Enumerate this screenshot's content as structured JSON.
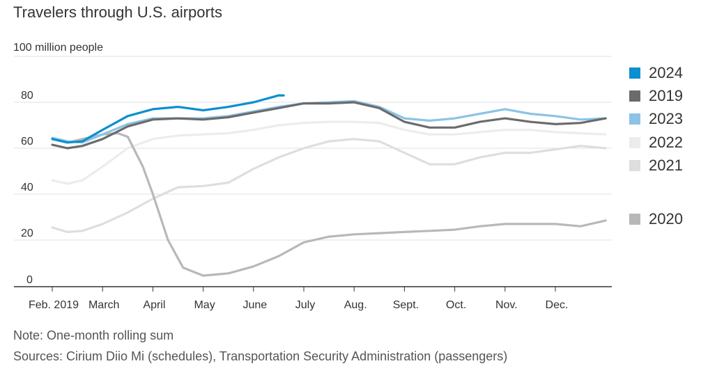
{
  "title": "Travelers through U.S. airports",
  "note": "Note: One-month rolling sum",
  "sources": "Sources: Cirium Diio Mi (schedules), Transportation Security Administration (passengers)",
  "chart_data": {
    "type": "line",
    "title": "Travelers through U.S. airports",
    "ylabel": "100 million people",
    "xlabel": "",
    "ylim": [
      0,
      100
    ],
    "yticks": [
      0,
      20,
      40,
      60,
      80,
      100
    ],
    "ytick_labels": [
      "0",
      "20",
      "40",
      "60",
      "80",
      "100 million people"
    ],
    "xlim": [
      0,
      11.2
    ],
    "xticks": [
      0,
      1,
      2,
      3,
      4,
      5,
      6,
      7,
      8,
      9,
      10
    ],
    "xtick_labels": [
      "Feb. 2019",
      "March",
      "April",
      "May",
      "June",
      "July",
      "Aug.",
      "Sept.",
      "Oct.",
      "Nov.",
      "Dec."
    ],
    "grid": true,
    "legend_position": "right",
    "x_unit": "months since Feb. 1",
    "series": [
      {
        "name": "2022",
        "color": "#ececec",
        "x": [
          0,
          0.3,
          0.6,
          1,
          1.5,
          2,
          2.5,
          3,
          3.5,
          4,
          4.5,
          5,
          5.5,
          6,
          6.5,
          7,
          7.5,
          8,
          8.5,
          9,
          9.5,
          10,
          10.5,
          11
        ],
        "values": [
          46,
          44.5,
          46,
          52,
          60,
          64,
          65.5,
          66,
          66.5,
          68,
          70,
          71,
          71.5,
          71.5,
          71,
          68,
          66,
          66,
          67,
          68,
          68,
          67,
          66.5,
          66
        ]
      },
      {
        "name": "2021",
        "color": "#dedede",
        "x": [
          0,
          0.3,
          0.6,
          1,
          1.5,
          2,
          2.5,
          3,
          3.5,
          4,
          4.5,
          5,
          5.5,
          6,
          6.5,
          7,
          7.5,
          8,
          8.5,
          9,
          9.5,
          10,
          10.5,
          11
        ],
        "values": [
          25.5,
          23.5,
          24,
          27,
          32,
          38,
          43,
          43.5,
          45,
          51,
          56,
          60,
          63,
          64,
          63,
          58,
          53,
          53,
          56,
          58,
          58,
          59.5,
          61,
          60
        ]
      },
      {
        "name": "2020",
        "color": "#b8b8b8",
        "x": [
          0,
          0.3,
          0.6,
          1,
          1.3,
          1.5,
          1.8,
          2,
          2.3,
          2.6,
          3,
          3.5,
          4,
          4.5,
          5,
          5.5,
          6,
          6.5,
          7,
          7.5,
          8,
          8.5,
          9,
          9.5,
          10,
          10.5,
          11
        ],
        "values": [
          64,
          62.5,
          64,
          66,
          66.5,
          65,
          52,
          40,
          20,
          8,
          4.5,
          5.5,
          8.5,
          13,
          19,
          21.5,
          22.5,
          23,
          23.5,
          24,
          24.5,
          26,
          27,
          27,
          27,
          26,
          28.5
        ]
      },
      {
        "name": "2023",
        "color": "#8cc3e6",
        "x": [
          0,
          0.3,
          0.6,
          1,
          1.5,
          2,
          2.5,
          3,
          3.5,
          4,
          4.5,
          5,
          5.5,
          6,
          6.5,
          7,
          7.5,
          8,
          8.5,
          9,
          9.5,
          10,
          10.5,
          11
        ],
        "values": [
          64.5,
          63,
          62.5,
          66,
          70.5,
          73,
          73,
          73,
          74,
          76,
          78,
          79.5,
          80,
          80.5,
          78,
          73,
          72,
          73,
          75,
          77,
          75,
          74,
          72.5,
          73
        ]
      },
      {
        "name": "2019",
        "color": "#6b6b6b",
        "x": [
          0,
          0.3,
          0.6,
          1,
          1.5,
          2,
          2.5,
          3,
          3.5,
          4,
          4.5,
          5,
          5.5,
          6,
          6.5,
          7,
          7.5,
          8,
          8.5,
          9,
          9.5,
          10,
          10.5,
          11
        ],
        "values": [
          61.5,
          60,
          61,
          64,
          69.5,
          72.5,
          73,
          72.5,
          73.5,
          75.5,
          77.5,
          79.5,
          79.5,
          80,
          77.5,
          71.5,
          69,
          69,
          71.5,
          73,
          71.5,
          70.5,
          71,
          73
        ]
      },
      {
        "name": "2024",
        "color": "#0a8fd0",
        "x": [
          0,
          0.3,
          0.6,
          1,
          1.5,
          2,
          2.5,
          3,
          3.5,
          4,
          4.5,
          4.6
        ],
        "values": [
          64,
          62.5,
          63,
          68,
          74,
          77,
          78,
          76.5,
          78,
          80,
          83,
          83
        ]
      }
    ],
    "legend": [
      {
        "label": "2024",
        "color": "#0a8fd0"
      },
      {
        "label": "2019",
        "color": "#6b6b6b"
      },
      {
        "label": "2023",
        "color": "#8cc3e6"
      },
      {
        "label": "2022",
        "color": "#ececec"
      },
      {
        "label": "2021",
        "color": "#dedede"
      },
      {
        "label": "2020",
        "color": "#b8b8b8"
      }
    ]
  }
}
